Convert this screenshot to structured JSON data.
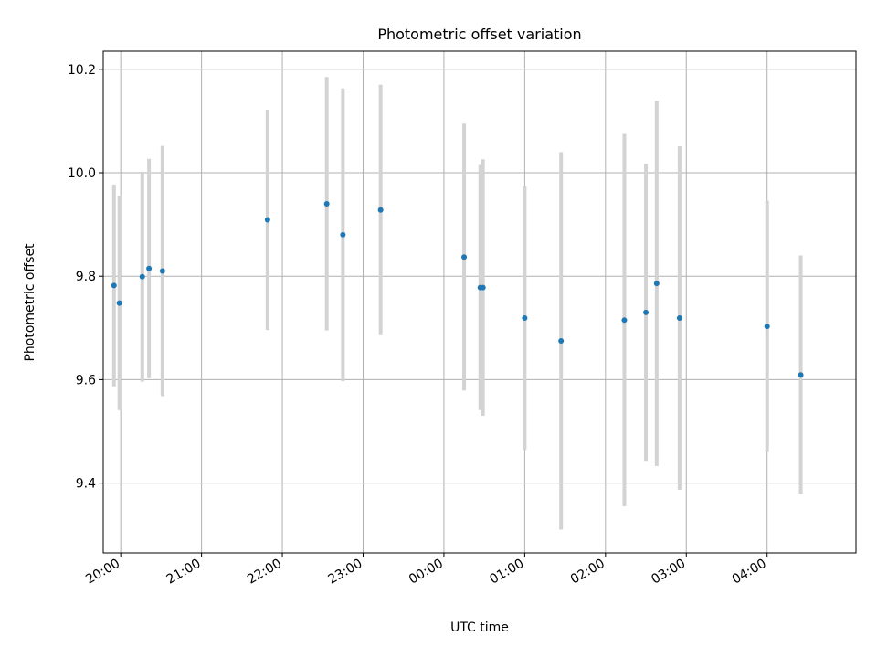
{
  "chart_data": {
    "type": "scatter",
    "title": "Photometric offset variation",
    "xlabel": "UTC time",
    "ylabel": "Photometric offset",
    "x_tick_labels": [
      "20:00",
      "21:00",
      "22:00",
      "23:00",
      "00:00",
      "01:00",
      "02:00",
      "03:00",
      "04:00"
    ],
    "y_tick_labels": [
      "9.4",
      "9.6",
      "9.8",
      "10.0",
      "10.2"
    ],
    "y_ticks": [
      9.4,
      9.6,
      9.8,
      10.0,
      10.2
    ],
    "xlim": [
      "19:47",
      "05:06"
    ],
    "ylim": [
      9.265,
      10.235
    ],
    "grid": true,
    "error_bar_color": "#d3d3d3",
    "marker_color": "#1f77b4",
    "points": [
      {
        "x": "19:55",
        "y": 9.782,
        "yerr": 0.195
      },
      {
        "x": "19:59",
        "y": 9.748,
        "yerr": 0.207
      },
      {
        "x": "20:16",
        "y": 9.799,
        "yerr": 0.203
      },
      {
        "x": "20:21",
        "y": 9.815,
        "yerr": 0.212
      },
      {
        "x": "20:31",
        "y": 9.81,
        "yerr": 0.242
      },
      {
        "x": "21:49",
        "y": 9.909,
        "yerr": 0.213
      },
      {
        "x": "22:33",
        "y": 9.94,
        "yerr": 0.245
      },
      {
        "x": "22:45",
        "y": 9.88,
        "yerr": 0.283
      },
      {
        "x": "23:13",
        "y": 9.928,
        "yerr": 0.242
      },
      {
        "x": "00:15",
        "y": 9.837,
        "yerr": 0.258
      },
      {
        "x": "00:27",
        "y": 9.778,
        "yerr": 0.237
      },
      {
        "x": "00:29",
        "y": 9.778,
        "yerr": 0.248
      },
      {
        "x": "01:00",
        "y": 9.719,
        "yerr": 0.255
      },
      {
        "x": "01:27",
        "y": 9.675,
        "yerr": 0.365
      },
      {
        "x": "02:14",
        "y": 9.715,
        "yerr": 0.36
      },
      {
        "x": "02:30",
        "y": 9.73,
        "yerr": 0.287
      },
      {
        "x": "02:38",
        "y": 9.786,
        "yerr": 0.353
      },
      {
        "x": "02:55",
        "y": 9.719,
        "yerr": 0.332
      },
      {
        "x": "04:00",
        "y": 9.703,
        "yerr": 0.243
      },
      {
        "x": "04:25",
        "y": 9.609,
        "yerr": 0.231
      }
    ]
  }
}
